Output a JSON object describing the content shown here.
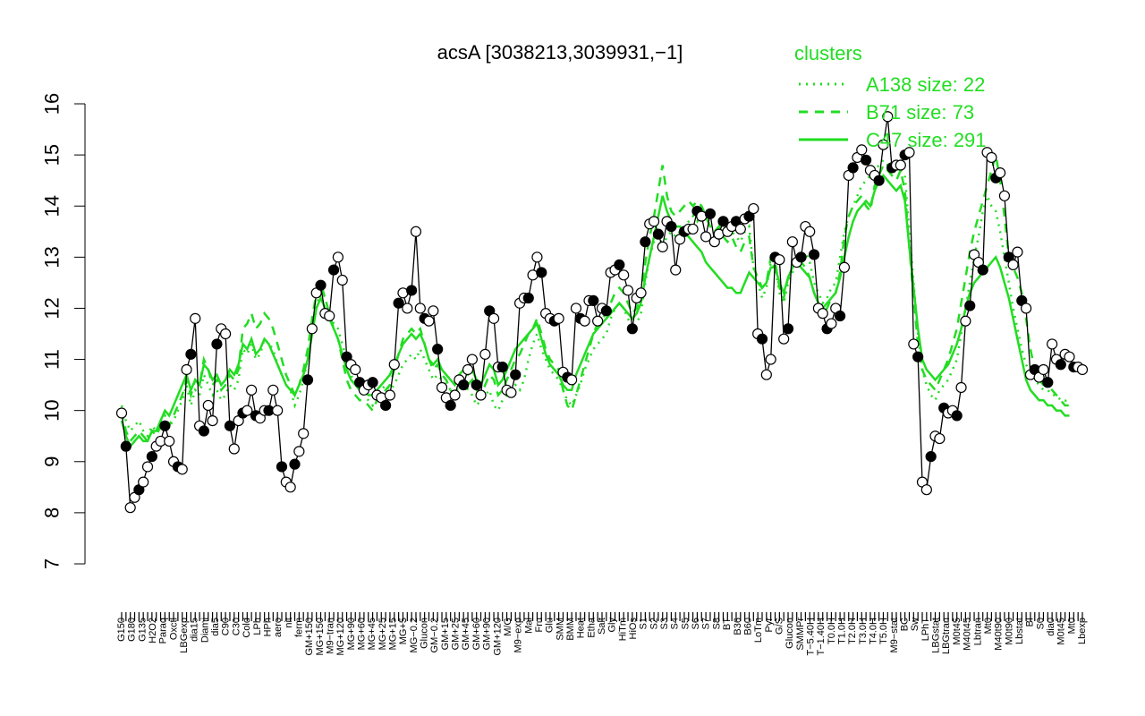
{
  "chart_data": {
    "type": "line",
    "title": "acsA [3038213,3039931,−1]",
    "xlabel": "",
    "ylabel": "",
    "ylim": [
      7,
      16
    ],
    "yticks": [
      7,
      8,
      9,
      10,
      11,
      12,
      13,
      14,
      15,
      16
    ],
    "x_tick_labels": [
      "G150",
      "G180",
      "G135",
      "H2O2",
      "Paraq",
      "Oxctl",
      "LBGexp",
      "dia15",
      "Diami",
      "dia5",
      "C90",
      "C30",
      "Cold",
      "LPh",
      "HPh",
      "aero",
      "nit",
      "ferm",
      "GM+150",
      "MG+150",
      "M9−tran",
      "MG+120",
      "MG+90",
      "MG+60",
      "MG+45",
      "MG+25",
      "MG+15",
      "MG+5",
      "MG−0.2",
      "Glucon",
      "GM−0.2",
      "GM+15",
      "GM+25",
      "GM+45",
      "GM+60",
      "GM+90",
      "GM+120",
      "M/G",
      "M9−exp",
      "Mal",
      "Fru",
      "Glu",
      "SMM",
      "BMM",
      "Heat",
      "Etha",
      "Salt",
      "Gly",
      "HiTm",
      "HiOs",
      "S1",
      "S2",
      "S3",
      "S4",
      "S5",
      "S6",
      "S7",
      "S8",
      "BT",
      "B36",
      "B60",
      "LoTm",
      "Pyr",
      "G/S",
      "Glucon",
      "SMMPr",
      "T−5.40H",
      "T−1.40H",
      "T0.0H",
      "T1.0H",
      "T2.0H",
      "T3.0H",
      "T4.0H",
      "T5.0H",
      "M9−stat",
      "BC",
      "Sw",
      "LPhT",
      "LBGstat",
      "LBGtran",
      "M0t45",
      "M40t45",
      "Lbtran",
      "Mt0",
      "M40t90",
      "M0t90",
      "Lbstat",
      "BI",
      "S0",
      "dia0",
      "M0t45",
      "Mt0",
      "Lbexp"
    ],
    "series": [
      {
        "name": "",
        "color": "#000000",
        "style": "solid-with-markers",
        "values": [
          9.95,
          9.3,
          8.1,
          8.3,
          8.45,
          8.6,
          8.9,
          9.1,
          9.3,
          9.4,
          9.7,
          9.4,
          9.0,
          8.9,
          8.85,
          10.8,
          11.1,
          11.8,
          9.7,
          9.6,
          10.1,
          9.8,
          11.3,
          11.6,
          11.5,
          9.7,
          9.25,
          9.8,
          9.95,
          10.0,
          10.4,
          9.9,
          9.85,
          10.0,
          10.0,
          10.4,
          10.0,
          8.9,
          8.6,
          8.5,
          8.95,
          9.2,
          9.55,
          10.6,
          11.6,
          12.3,
          12.45,
          11.9,
          11.85,
          12.75,
          13.0,
          12.55,
          11.05,
          10.9,
          10.8,
          10.55,
          10.4,
          10.5,
          10.55,
          10.3,
          10.25,
          10.1,
          10.3,
          10.9,
          12.1,
          12.3,
          12.0,
          12.35,
          13.5,
          12.0,
          11.8,
          11.75,
          11.95,
          11.2,
          10.45,
          10.25,
          10.1,
          10.3,
          10.6,
          10.5,
          10.8,
          11.0,
          10.5,
          10.3,
          11.1,
          11.95,
          11.8,
          10.85,
          10.85,
          10.4,
          10.35,
          10.7,
          12.1,
          12.2,
          12.2,
          12.65,
          13.0,
          12.7,
          11.9,
          11.8,
          11.75,
          11.8,
          10.75,
          10.65,
          10.6,
          12.0,
          11.8,
          11.75,
          12.15,
          12.15,
          11.75,
          12.0,
          11.95,
          12.7,
          12.75,
          12.85,
          12.65,
          12.35,
          11.6,
          12.2,
          12.3,
          13.3,
          13.65,
          13.7,
          13.45,
          13.2,
          13.7,
          13.6,
          12.75,
          13.35,
          13.5,
          13.55,
          13.55,
          13.9,
          13.8,
          13.4,
          13.85,
          13.3,
          13.45,
          13.7,
          13.5,
          13.6,
          13.7,
          13.55,
          13.75,
          13.8,
          13.95,
          11.5,
          11.4,
          10.7,
          11.0,
          13.0,
          12.95,
          11.4,
          11.6,
          13.3,
          12.9,
          13.0,
          13.6,
          13.5,
          13.05,
          12.0,
          11.9,
          11.6,
          11.7,
          12.0,
          11.85,
          12.8,
          14.6,
          14.75,
          14.95,
          15.1,
          14.9,
          14.7,
          14.6,
          14.5,
          15.2,
          15.75,
          14.75,
          14.8,
          14.8,
          15.0,
          15.05,
          11.3,
          11.05,
          8.6,
          8.45,
          9.1,
          9.5,
          9.45,
          10.05,
          9.95,
          10.0,
          9.9,
          10.45,
          11.75,
          12.05,
          13.05,
          12.9,
          12.75,
          15.05,
          14.95,
          14.55,
          14.65,
          14.2,
          13.0,
          12.85,
          13.1,
          12.15,
          12.0,
          10.7,
          10.8,
          10.65,
          10.8,
          10.55,
          11.3,
          11.0,
          10.9,
          11.1,
          11.05,
          10.85,
          10.85,
          10.8
        ]
      },
      {
        "name": "A138 size: 22",
        "color": "#22dd22",
        "style": "dotted",
        "values": [
          10.1,
          9.8,
          9.6,
          9.7,
          9.8,
          9.6,
          9.5,
          9.7,
          9.6,
          9.8,
          9.9,
          9.7,
          9.8,
          10.0,
          10.2,
          10.5,
          10.1,
          10.4,
          10.3,
          10.7,
          10.5,
          10.3,
          10.4,
          10.2,
          10.3,
          10.5,
          10.4,
          10.6,
          11.2,
          11.1,
          11.3,
          11.0,
          11.1,
          11.4,
          11.3,
          11.2,
          10.9,
          10.7,
          10.5,
          10.4,
          10.1,
          10.3,
          10.6,
          11.0,
          11.5,
          12.0,
          12.4,
          12.2,
          11.9,
          11.7,
          11.6,
          11.3,
          11.0,
          10.7,
          10.5,
          10.4,
          10.3,
          10.2,
          10.1,
          10.3,
          10.4,
          10.5,
          10.4,
          10.5,
          10.7,
          10.9,
          11.0,
          11.1,
          11.0,
          11.2,
          11.0,
          10.8,
          10.6,
          10.7,
          10.6,
          10.5,
          10.4,
          10.3,
          10.5,
          10.6,
          10.4,
          10.3,
          10.1,
          10.2,
          10.3,
          10.4,
          10.1,
          10.0,
          10.2,
          10.3,
          10.4,
          10.5,
          10.4,
          10.6,
          11.0,
          11.3,
          11.5,
          11.2,
          11.0,
          10.8,
          10.7,
          10.6,
          10.4,
          10.2,
          10.1,
          10.3,
          10.5,
          10.8,
          11.0,
          11.2,
          11.3,
          11.4,
          11.5,
          11.8,
          12.0,
          12.1,
          12.0,
          11.8,
          11.6,
          11.7,
          11.9,
          12.5,
          13.0,
          13.3,
          13.5,
          13.2,
          13.4,
          13.5,
          13.4,
          13.5,
          13.6,
          13.7,
          13.8,
          13.7,
          13.9,
          13.8,
          13.6,
          13.5,
          13.6,
          13.5,
          13.6,
          13.5,
          13.4,
          13.3,
          13.5,
          13.6,
          12.8,
          12.5,
          12.2,
          12.4,
          12.9,
          12.8,
          12.3,
          12.1,
          12.5,
          12.7,
          12.9,
          13.0,
          13.1,
          12.9,
          12.5,
          12.3,
          12.1,
          12.2,
          12.4,
          12.5,
          13.0,
          13.5,
          13.8,
          14.0,
          14.2,
          14.4,
          14.5,
          14.6,
          14.7,
          14.8,
          14.9,
          14.8,
          14.7,
          14.8,
          14.7,
          14.6,
          13.5,
          12.5,
          11.5,
          10.8,
          10.5,
          10.3,
          10.2,
          10.4,
          10.5,
          10.6,
          10.8,
          11.0,
          11.5,
          12.0,
          12.5,
          13.0,
          13.4,
          13.9,
          14.2,
          14.0,
          13.9,
          13.5,
          13.0,
          12.5,
          12.0,
          11.6,
          11.2,
          10.9,
          10.7,
          10.6,
          10.5,
          10.4,
          10.4,
          10.3,
          10.3,
          10.2,
          10.2,
          10.1
        ]
      },
      {
        "name": "B71 size: 73",
        "color": "#22dd22",
        "style": "dashed",
        "values": [
          10.0,
          9.6,
          9.4,
          9.5,
          9.6,
          9.5,
          9.4,
          9.6,
          9.5,
          9.7,
          9.8,
          9.7,
          9.9,
          10.1,
          10.3,
          10.6,
          10.3,
          10.6,
          10.5,
          11.0,
          10.8,
          10.5,
          10.6,
          10.4,
          10.5,
          10.7,
          10.6,
          10.8,
          11.6,
          11.7,
          11.9,
          11.6,
          11.7,
          11.9,
          11.8,
          11.6,
          11.3,
          11.0,
          10.7,
          10.5,
          10.3,
          10.5,
          10.8,
          11.2,
          11.8,
          12.3,
          12.5,
          12.2,
          11.9,
          11.6,
          11.4,
          11.0,
          10.6,
          10.4,
          10.3,
          10.2,
          10.2,
          10.1,
          10.0,
          10.2,
          10.3,
          10.4,
          10.5,
          10.8,
          11.1,
          11.4,
          11.5,
          11.6,
          11.5,
          11.6,
          11.3,
          11.0,
          10.8,
          10.9,
          10.7,
          10.6,
          10.4,
          10.3,
          10.5,
          10.6,
          10.5,
          10.6,
          10.4,
          10.3,
          10.5,
          10.7,
          10.6,
          10.3,
          10.4,
          10.6,
          10.8,
          11.0,
          11.1,
          11.3,
          11.5,
          11.6,
          11.8,
          11.5,
          11.2,
          11.0,
          10.9,
          10.8,
          10.4,
          10.1,
          10.0,
          10.3,
          10.6,
          10.9,
          11.2,
          11.5,
          11.7,
          11.8,
          11.9,
          12.1,
          12.3,
          12.4,
          12.3,
          12.1,
          11.9,
          12.0,
          12.3,
          12.9,
          13.4,
          13.8,
          14.3,
          14.8,
          14.2,
          13.9,
          13.8,
          13.9,
          14.0,
          14.1,
          14.0,
          14.1,
          14.0,
          13.8,
          13.6,
          13.5,
          13.6,
          13.4,
          13.3,
          13.4,
          13.2,
          13.1,
          13.3,
          13.4,
          12.8,
          12.6,
          12.4,
          12.5,
          13.0,
          12.9,
          12.4,
          12.2,
          12.6,
          12.8,
          13.0,
          12.9,
          12.8,
          12.6,
          12.3,
          12.1,
          11.9,
          12.0,
          12.2,
          12.3,
          12.7,
          13.4,
          13.8,
          14.0,
          14.1,
          14.2,
          14.0,
          13.9,
          14.4,
          14.6,
          14.8,
          14.7,
          14.6,
          14.5,
          14.7,
          14.3,
          13.2,
          12.2,
          11.3,
          10.8,
          10.6,
          10.5,
          10.4,
          10.6,
          10.8,
          11.0,
          11.3,
          11.6,
          12.1,
          12.6,
          13.1,
          13.5,
          13.8,
          14.1,
          14.4,
          14.7,
          15.0,
          14.5,
          13.8,
          13.0,
          12.8,
          12.6,
          12.3,
          11.8,
          11.2,
          10.8,
          10.6,
          10.5,
          10.5,
          10.4,
          10.3,
          10.2,
          10.1,
          10.1
        ]
      },
      {
        "name": "C47 size: 291",
        "color": "#22dd22",
        "style": "solid",
        "values": [
          9.8,
          9.5,
          9.3,
          9.4,
          9.5,
          9.4,
          9.4,
          9.6,
          9.6,
          9.8,
          10.0,
          9.9,
          10.1,
          10.3,
          10.5,
          10.7,
          10.4,
          10.6,
          10.5,
          10.9,
          10.8,
          10.6,
          10.7,
          10.5,
          10.6,
          10.8,
          10.7,
          10.9,
          11.3,
          11.2,
          11.4,
          11.1,
          11.2,
          11.4,
          11.3,
          11.1,
          10.9,
          10.7,
          10.5,
          10.4,
          10.3,
          10.5,
          10.7,
          11.0,
          11.5,
          12.0,
          12.2,
          12.0,
          11.8,
          11.6,
          11.4,
          11.1,
          10.8,
          10.6,
          10.5,
          10.4,
          10.4,
          10.3,
          10.3,
          10.4,
          10.5,
          10.6,
          10.7,
          10.9,
          11.1,
          11.3,
          11.4,
          11.5,
          11.4,
          11.5,
          11.3,
          11.0,
          10.9,
          11.0,
          10.8,
          10.7,
          10.6,
          10.5,
          10.7,
          10.8,
          10.7,
          10.8,
          10.6,
          10.5,
          10.7,
          10.9,
          10.8,
          10.5,
          10.6,
          10.8,
          11.0,
          11.2,
          11.3,
          11.4,
          11.5,
          11.6,
          11.7,
          11.4,
          11.1,
          10.9,
          10.8,
          10.7,
          10.5,
          10.4,
          10.4,
          10.7,
          10.9,
          11.1,
          11.3,
          11.5,
          11.6,
          11.7,
          11.8,
          11.9,
          12.0,
          12.1,
          12.0,
          11.9,
          11.8,
          11.9,
          12.1,
          12.6,
          13.0,
          13.4,
          13.8,
          14.2,
          13.9,
          13.7,
          13.6,
          13.6,
          13.5,
          13.4,
          13.3,
          13.2,
          13.1,
          12.9,
          12.8,
          12.7,
          12.6,
          12.5,
          12.4,
          12.4,
          12.3,
          12.3,
          12.5,
          12.7,
          12.6,
          12.5,
          12.4,
          12.5,
          12.8,
          12.8,
          12.5,
          12.3,
          12.6,
          12.8,
          12.9,
          12.8,
          12.7,
          12.6,
          12.3,
          12.1,
          12.0,
          12.1,
          12.2,
          12.3,
          12.6,
          13.0,
          13.4,
          13.7,
          13.9,
          14.0,
          14.1,
          14.0,
          14.3,
          14.5,
          14.6,
          14.5,
          14.4,
          14.3,
          14.4,
          14.1,
          13.2,
          12.4,
          11.6,
          11.0,
          10.8,
          10.7,
          10.6,
          10.7,
          10.8,
          10.9,
          11.1,
          11.3,
          11.6,
          12.0,
          12.3,
          12.5,
          12.6,
          12.7,
          12.8,
          12.9,
          13.0,
          12.8,
          12.5,
          12.2,
          11.8,
          11.4,
          11.0,
          10.6,
          10.4,
          10.3,
          10.2,
          10.2,
          10.1,
          10.1,
          10.0,
          10.0,
          9.9,
          9.9
        ]
      }
    ],
    "legend": {
      "title": "clusters",
      "placement": "top-right",
      "entries": [
        "A138 size: 22",
        "B71 size: 73",
        "C47 size: 291"
      ]
    },
    "grid": false
  }
}
